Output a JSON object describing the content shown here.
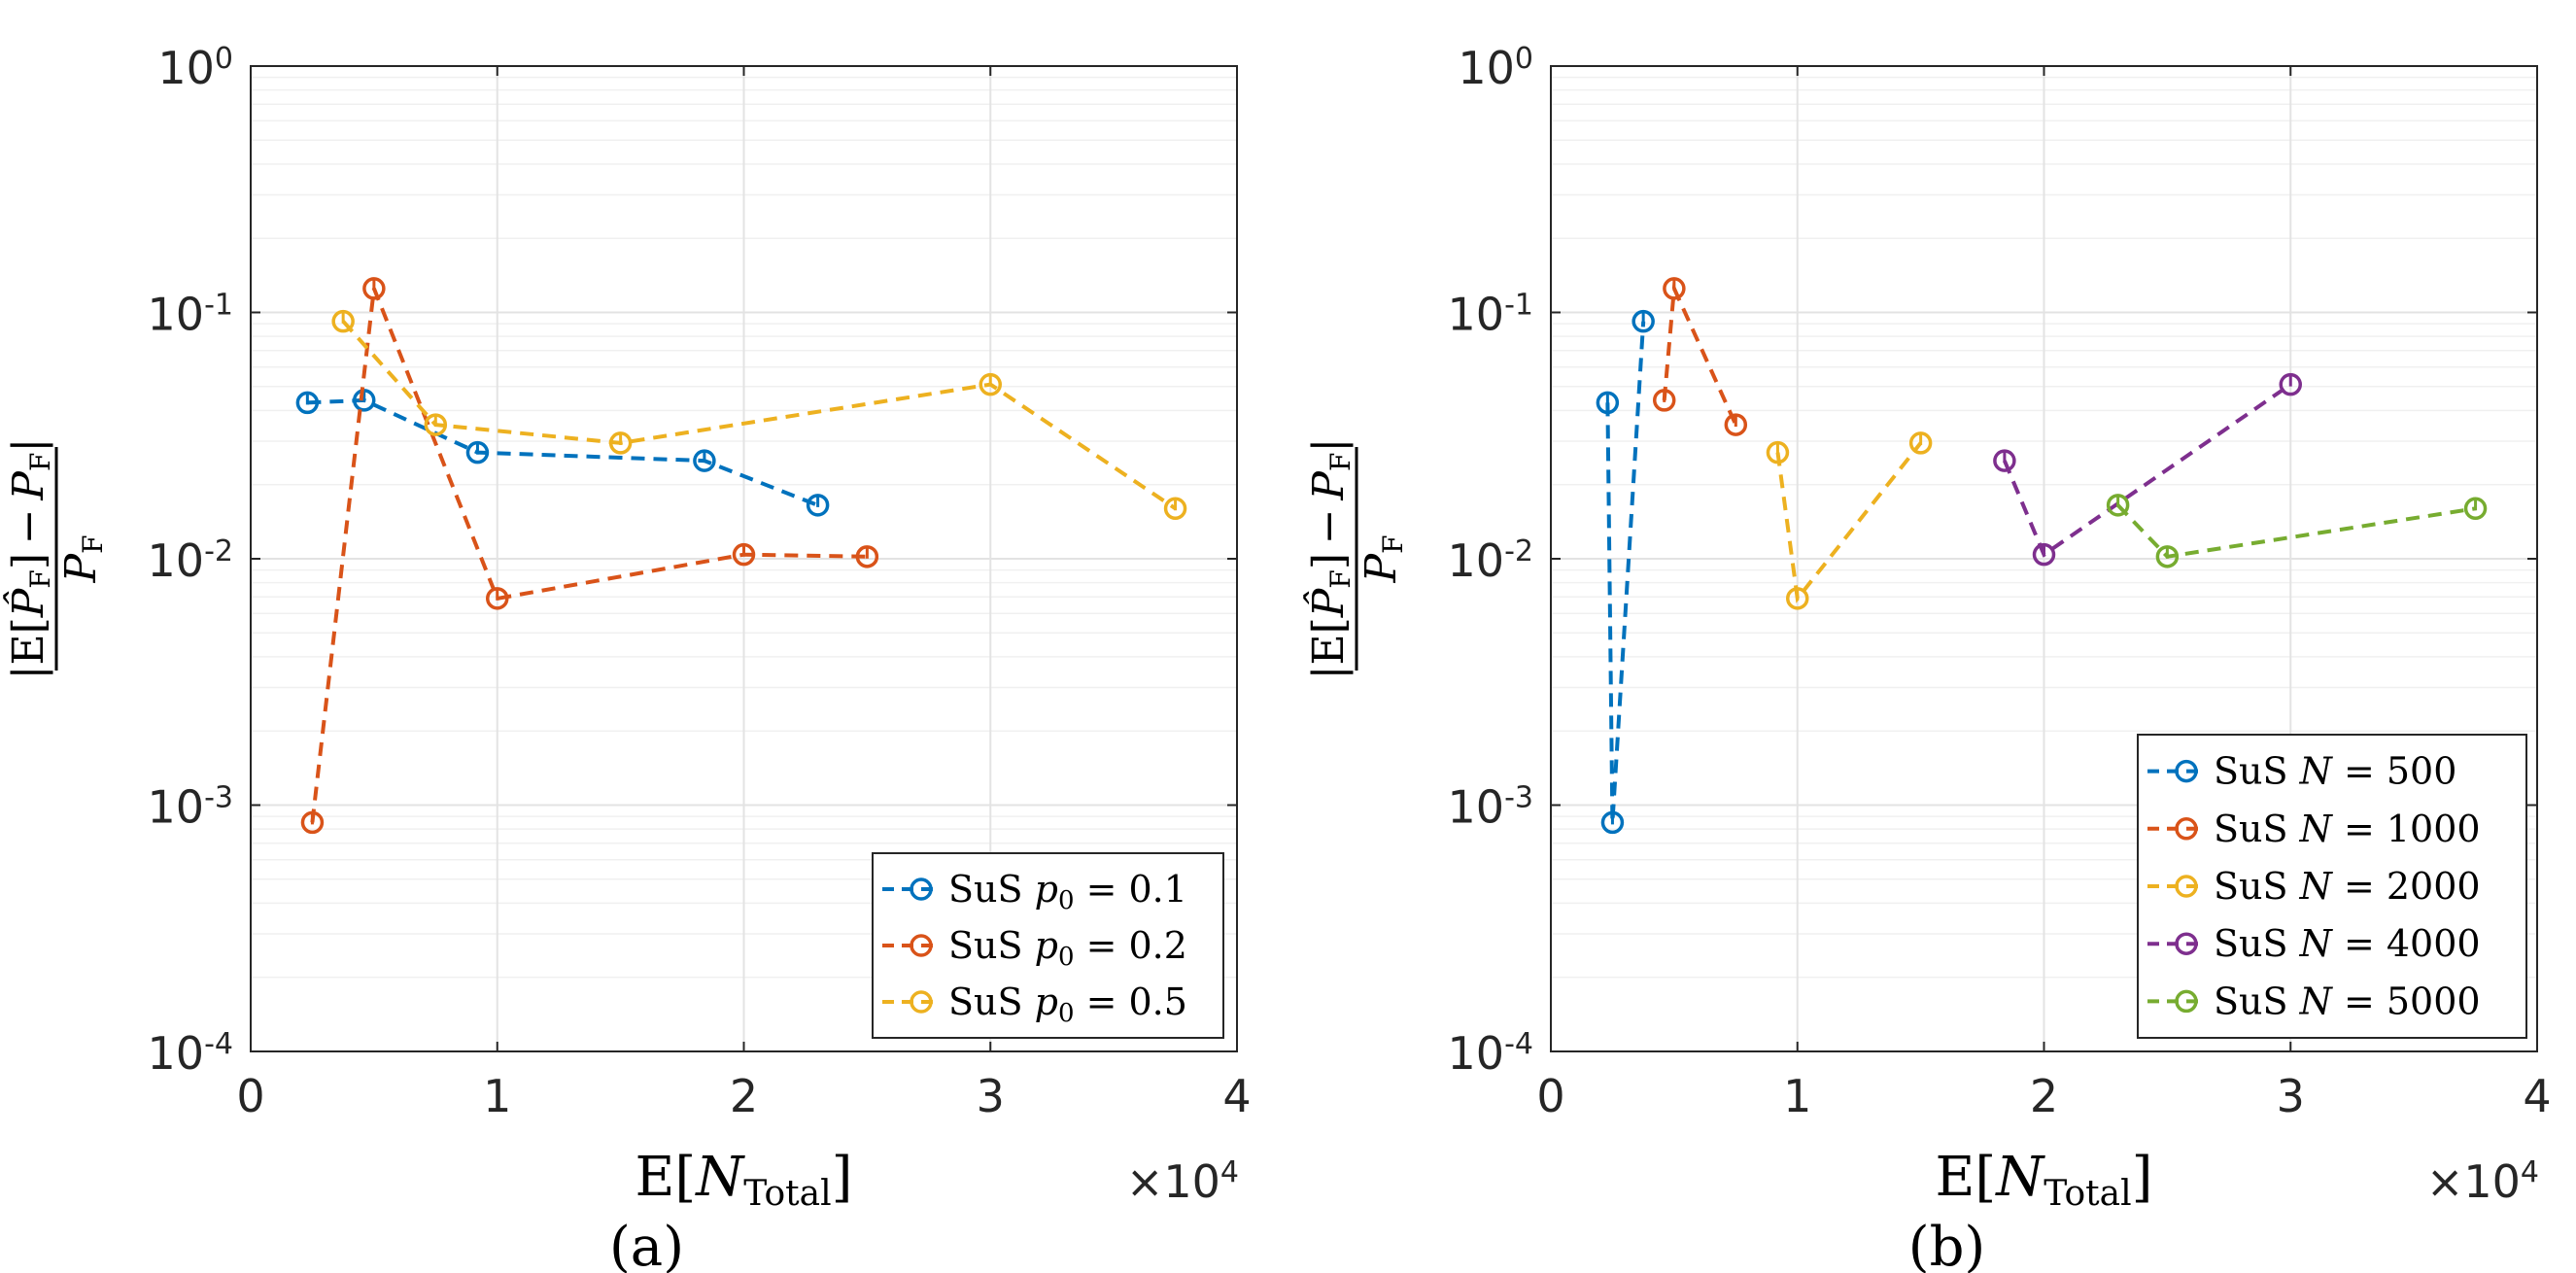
{
  "chart_data": [
    {
      "type": "line",
      "caption": "(a)",
      "xlabel": "E[N_Total]",
      "ylabel": "|E[P̂_F] − P_F| / P_F",
      "x_multiplier": "×10^4",
      "xscale": "linear",
      "yscale": "log",
      "xlim": [
        0,
        40000
      ],
      "ylim": [
        0.0001,
        1
      ],
      "xticks": [
        "0",
        "1",
        "2",
        "3",
        "4"
      ],
      "yticks": [
        {
          "base": "10",
          "exp": "0"
        },
        {
          "base": "10",
          "exp": "-1"
        },
        {
          "base": "10",
          "exp": "-2"
        },
        {
          "base": "10",
          "exp": "-3"
        },
        {
          "base": "10",
          "exp": "-4"
        }
      ],
      "grid": true,
      "legend_position": "bottom-right",
      "series": [
        {
          "name": "SuS p0 = 0.1",
          "legend_prefix": "SuS ",
          "legend_var": "p",
          "legend_sub": "0",
          "legend_value": " = 0.1",
          "color": "#0072BD",
          "x": [
            2300,
            4600,
            9200,
            18400,
            23000
          ],
          "y": [
            0.043,
            0.044,
            0.027,
            0.025,
            0.0165
          ]
        },
        {
          "name": "SuS p0 = 0.2",
          "legend_prefix": "SuS ",
          "legend_var": "p",
          "legend_sub": "0",
          "legend_value": " = 0.2",
          "color": "#D95319",
          "x": [
            2500,
            5000,
            10000,
            20000,
            25000
          ],
          "y": [
            0.00085,
            0.125,
            0.0069,
            0.0104,
            0.0102
          ]
        },
        {
          "name": "SuS p0 = 0.5",
          "legend_prefix": "SuS ",
          "legend_var": "p",
          "legend_sub": "0",
          "legend_value": " = 0.5",
          "color": "#EDB120",
          "x": [
            3750,
            7500,
            15000,
            30000,
            37500
          ],
          "y": [
            0.092,
            0.035,
            0.0295,
            0.051,
            0.016
          ]
        }
      ]
    },
    {
      "type": "line",
      "caption": "(b)",
      "xlabel": "E[N_Total]",
      "ylabel": "|E[P̂_F] − P_F| / P_F",
      "x_multiplier": "×10^4",
      "xscale": "linear",
      "yscale": "log",
      "xlim": [
        0,
        40000
      ],
      "ylim": [
        0.0001,
        1
      ],
      "xticks": [
        "0",
        "1",
        "2",
        "3",
        "4"
      ],
      "yticks": [
        {
          "base": "10",
          "exp": "0"
        },
        {
          "base": "10",
          "exp": "-1"
        },
        {
          "base": "10",
          "exp": "-2"
        },
        {
          "base": "10",
          "exp": "-3"
        },
        {
          "base": "10",
          "exp": "-4"
        }
      ],
      "grid": true,
      "legend_position": "bottom-right",
      "series": [
        {
          "name": "SuS N = 500",
          "legend_prefix": "SuS ",
          "legend_var": "N",
          "legend_sub": "",
          "legend_value": " = 500",
          "color": "#0072BD",
          "x": [
            2300,
            2500,
            3750
          ],
          "y": [
            0.043,
            0.00085,
            0.092
          ]
        },
        {
          "name": "SuS N = 1000",
          "legend_prefix": "SuS ",
          "legend_var": "N",
          "legend_sub": "",
          "legend_value": " = 1000",
          "color": "#D95319",
          "x": [
            4600,
            5000,
            7500
          ],
          "y": [
            0.044,
            0.125,
            0.035
          ]
        },
        {
          "name": "SuS N = 2000",
          "legend_prefix": "SuS ",
          "legend_var": "N",
          "legend_sub": "",
          "legend_value": " = 2000",
          "color": "#EDB120",
          "x": [
            9200,
            10000,
            15000
          ],
          "y": [
            0.027,
            0.0069,
            0.0295
          ]
        },
        {
          "name": "SuS N = 4000",
          "legend_prefix": "SuS ",
          "legend_var": "N",
          "legend_sub": "",
          "legend_value": " = 4000",
          "color": "#7E2F8E",
          "x": [
            18400,
            20000,
            30000
          ],
          "y": [
            0.025,
            0.0104,
            0.051
          ]
        },
        {
          "name": "SuS N = 5000",
          "legend_prefix": "SuS ",
          "legend_var": "N",
          "legend_sub": "",
          "legend_value": " = 5000",
          "color": "#77AC30",
          "x": [
            23000,
            25000,
            37500
          ],
          "y": [
            0.0165,
            0.0102,
            0.016
          ]
        }
      ]
    }
  ]
}
